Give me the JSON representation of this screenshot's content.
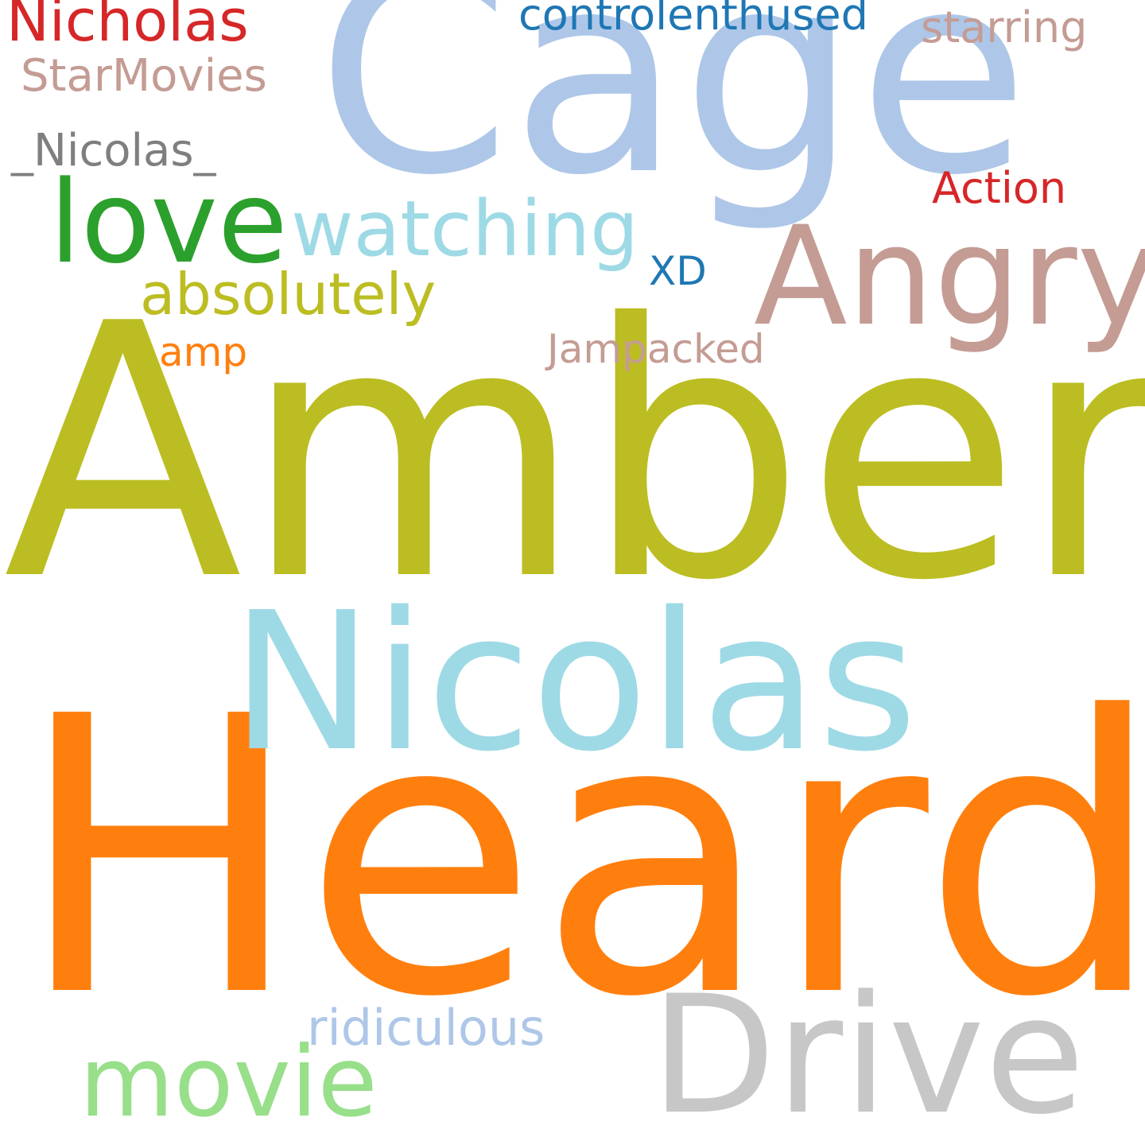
{
  "words": [
    {
      "text": "Cage",
      "color": "#aec7e8"
    },
    {
      "text": "Amber",
      "color": "#bcbd22"
    },
    {
      "text": "Heard",
      "color": "#ff7f0e"
    },
    {
      "text": "Nicolas",
      "color": "#9edae5"
    },
    {
      "text": "Angry",
      "color": "#c49c94"
    },
    {
      "text": "Drive",
      "color": "#c7c7c7"
    },
    {
      "text": "love",
      "color": "#2ca02c"
    },
    {
      "text": "watching",
      "color": "#9edae5"
    },
    {
      "text": "movie",
      "color": "#98df8a"
    },
    {
      "text": "absolutely",
      "color": "#bcbd22"
    },
    {
      "text": "Nicholas",
      "color": "#d62728"
    },
    {
      "text": "StarMovies",
      "color": "#c49c94"
    },
    {
      "text": "_Nicolas_",
      "color": "#7f7f7f"
    },
    {
      "text": "controlenthused",
      "color": "#1f77b4"
    },
    {
      "text": "starring",
      "color": "#c49c94"
    },
    {
      "text": "Action",
      "color": "#d62728"
    },
    {
      "text": "XD",
      "color": "#1f77b4"
    },
    {
      "text": "Jampacked",
      "color": "#c49c94"
    },
    {
      "text": "amp",
      "color": "#ff7f0e"
    },
    {
      "text": "ridiculous",
      "color": "#aec7e8"
    }
  ]
}
